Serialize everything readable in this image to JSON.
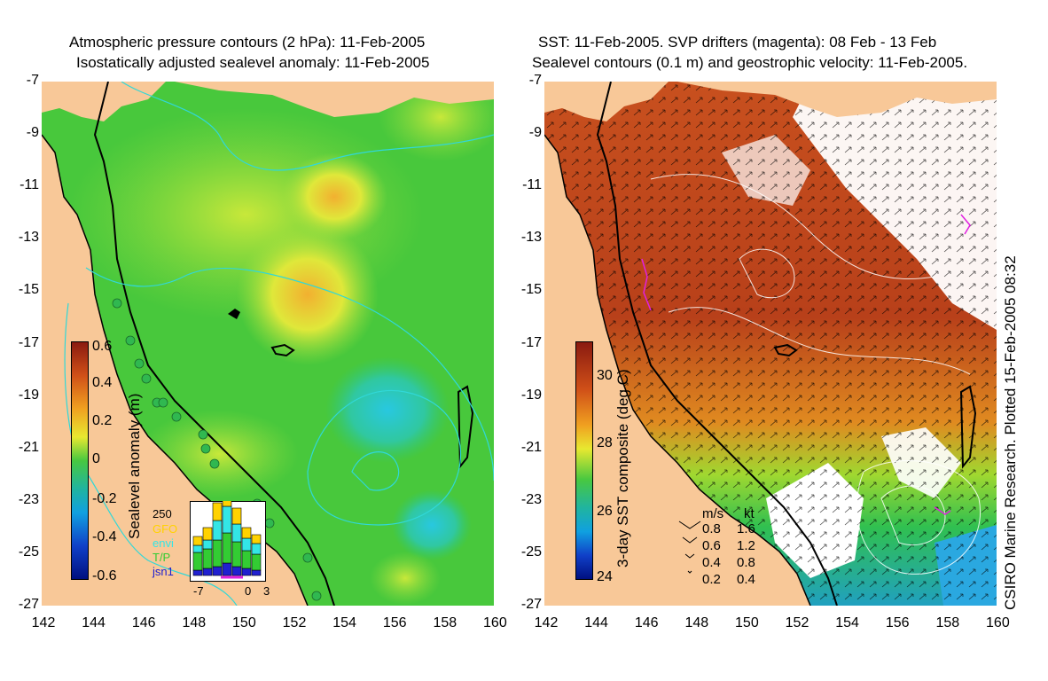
{
  "left": {
    "title1": "Atmospheric pressure contours (2 hPa): 11-Feb-2005",
    "title2": "Isostatically adjusted sealevel anomaly: 11-Feb-2005",
    "y_ticks": [
      "-7",
      "-9",
      "-11",
      "-13",
      "-15",
      "-17",
      "-19",
      "-21",
      "-23",
      "-25",
      "-27"
    ],
    "x_ticks": [
      "142",
      "144",
      "146",
      "148",
      "150",
      "152",
      "154",
      "156",
      "158",
      "160"
    ],
    "colorbar_label": "Sealevel anomaly (m)",
    "colorbar_ticks": [
      "0.6",
      "0.4",
      "0.2",
      "0",
      "-0.2",
      "-0.4",
      "-0.6"
    ],
    "inset": {
      "count": "250",
      "legend": [
        {
          "label": "GFO",
          "color": "#ffd200"
        },
        {
          "label": "envi",
          "color": "#33e6e6"
        },
        {
          "label": "T/P",
          "color": "#33cc33"
        },
        {
          "label": "jsn1",
          "color": "#2020d0"
        }
      ],
      "x_ticks": [
        "-7",
        "0",
        "3"
      ]
    }
  },
  "right": {
    "title1": "SST: 11-Feb-2005. SVP drifters (magenta): 08 Feb - 13 Feb",
    "title2": "Sealevel contours (0.1 m) and geostrophic velocity: 11-Feb-2005.",
    "y_ticks": [
      "-7",
      "-9",
      "-11",
      "-13",
      "-15",
      "-17",
      "-19",
      "-21",
      "-23",
      "-25",
      "-27"
    ],
    "x_ticks": [
      "142",
      "144",
      "146",
      "148",
      "150",
      "152",
      "154",
      "156",
      "158",
      "160"
    ],
    "colorbar_label": "3-day SST composite (deg C)",
    "colorbar_ticks": [
      "30",
      "28",
      "26",
      "24"
    ],
    "velocity_key": {
      "header_ms": "m/s",
      "header_kt": "kt",
      "rows": [
        {
          "ms": "0.8",
          "kt": "1.6"
        },
        {
          "ms": "0.6",
          "kt": "1.2"
        },
        {
          "ms": "0.4",
          "kt": "0.8"
        },
        {
          "ms": "0.2",
          "kt": "0.4"
        }
      ]
    },
    "credit": "CSIRO Marine Research. Plotted 15-Feb-2005 08:32"
  },
  "colors": {
    "land": "#f8c898",
    "ocean_green": "#3cc83c",
    "contour_cyan": "#30d8d8",
    "sst_red": "#c8501e",
    "cloud": "#ffffff"
  }
}
